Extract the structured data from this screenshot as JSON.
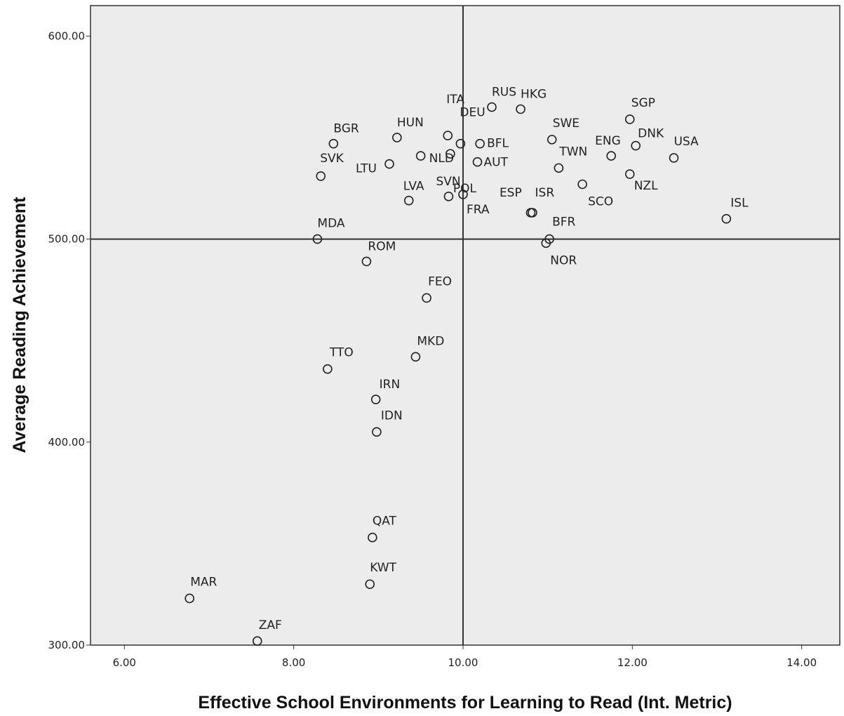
{
  "chart_data": {
    "type": "scatter",
    "title": "",
    "xlabel": "Effective School Environments for Learning to Read (Int. Metric)",
    "ylabel": "Average Reading Achievement",
    "xlim": [
      5.6,
      14.45
    ],
    "ylim": [
      300,
      615
    ],
    "x_ticks": [
      "6.00",
      "8.00",
      "10.00",
      "12.00",
      "14.00"
    ],
    "y_ticks": [
      "300.00",
      "400.00",
      "500.00",
      "600.00"
    ],
    "reference_lines": {
      "x": 10,
      "y": 500
    },
    "grid": false,
    "legend": "none",
    "marker": "open-circle",
    "background_color": "#ececec",
    "points": [
      {
        "label": "RUS",
        "x": 10.34,
        "y": 565
      },
      {
        "label": "HKG",
        "x": 10.68,
        "y": 564
      },
      {
        "label": "ITA",
        "x": 9.82,
        "y": 551
      },
      {
        "label": "DEU",
        "x": 9.97,
        "y": 547
      },
      {
        "label": "HUN",
        "x": 9.22,
        "y": 550
      },
      {
        "label": "BGR",
        "x": 8.47,
        "y": 547
      },
      {
        "label": "LTU",
        "x": 9.13,
        "y": 537
      },
      {
        "label": "SVK",
        "x": 8.32,
        "y": 531
      },
      {
        "label": "NLD",
        "x": 9.5,
        "y": 541
      },
      {
        "label": "BFL",
        "x": 10.2,
        "y": 547
      },
      {
        "label": "AUT",
        "x": 10.17,
        "y": 538
      },
      {
        "label": "SWE",
        "x": 11.05,
        "y": 549
      },
      {
        "label": "TWN",
        "x": 11.13,
        "y": 535
      },
      {
        "label": "SGP",
        "x": 11.97,
        "y": 559
      },
      {
        "label": "DNK",
        "x": 12.04,
        "y": 546
      },
      {
        "label": "ENG",
        "x": 11.75,
        "y": 541
      },
      {
        "label": "USA",
        "x": 12.49,
        "y": 540
      },
      {
        "label": "NZL",
        "x": 11.97,
        "y": 532
      },
      {
        "label": "SCO",
        "x": 11.41,
        "y": 527
      },
      {
        "label": "LVA",
        "x": 9.36,
        "y": 519
      },
      {
        "label": "POL",
        "x": 9.85,
        "y": 542
      },
      {
        "label": "SVN",
        "x": 9.83,
        "y": 521
      },
      {
        "label": "FRA",
        "x": 10.0,
        "y": 522
      },
      {
        "label": "ESP",
        "x": 10.82,
        "y": 513
      },
      {
        "label": "ISR",
        "x": 10.8,
        "y": 513
      },
      {
        "label": "ISL",
        "x": 13.11,
        "y": 510
      },
      {
        "label": "BFR",
        "x": 11.02,
        "y": 500
      },
      {
        "label": "NOR",
        "x": 10.98,
        "y": 498
      },
      {
        "label": "MDA",
        "x": 8.28,
        "y": 500
      },
      {
        "label": "ROM",
        "x": 8.86,
        "y": 489
      },
      {
        "label": "FEO",
        "x": 9.57,
        "y": 471
      },
      {
        "label": "MKD",
        "x": 9.44,
        "y": 442
      },
      {
        "label": "TTO",
        "x": 8.4,
        "y": 436
      },
      {
        "label": "IRN",
        "x": 8.97,
        "y": 421
      },
      {
        "label": "IDN",
        "x": 8.98,
        "y": 405
      },
      {
        "label": "QAT",
        "x": 8.93,
        "y": 353
      },
      {
        "label": "KWT",
        "x": 8.9,
        "y": 330
      },
      {
        "label": "MAR",
        "x": 6.77,
        "y": 323
      },
      {
        "label": "ZAF",
        "x": 7.57,
        "y": 302
      }
    ]
  }
}
